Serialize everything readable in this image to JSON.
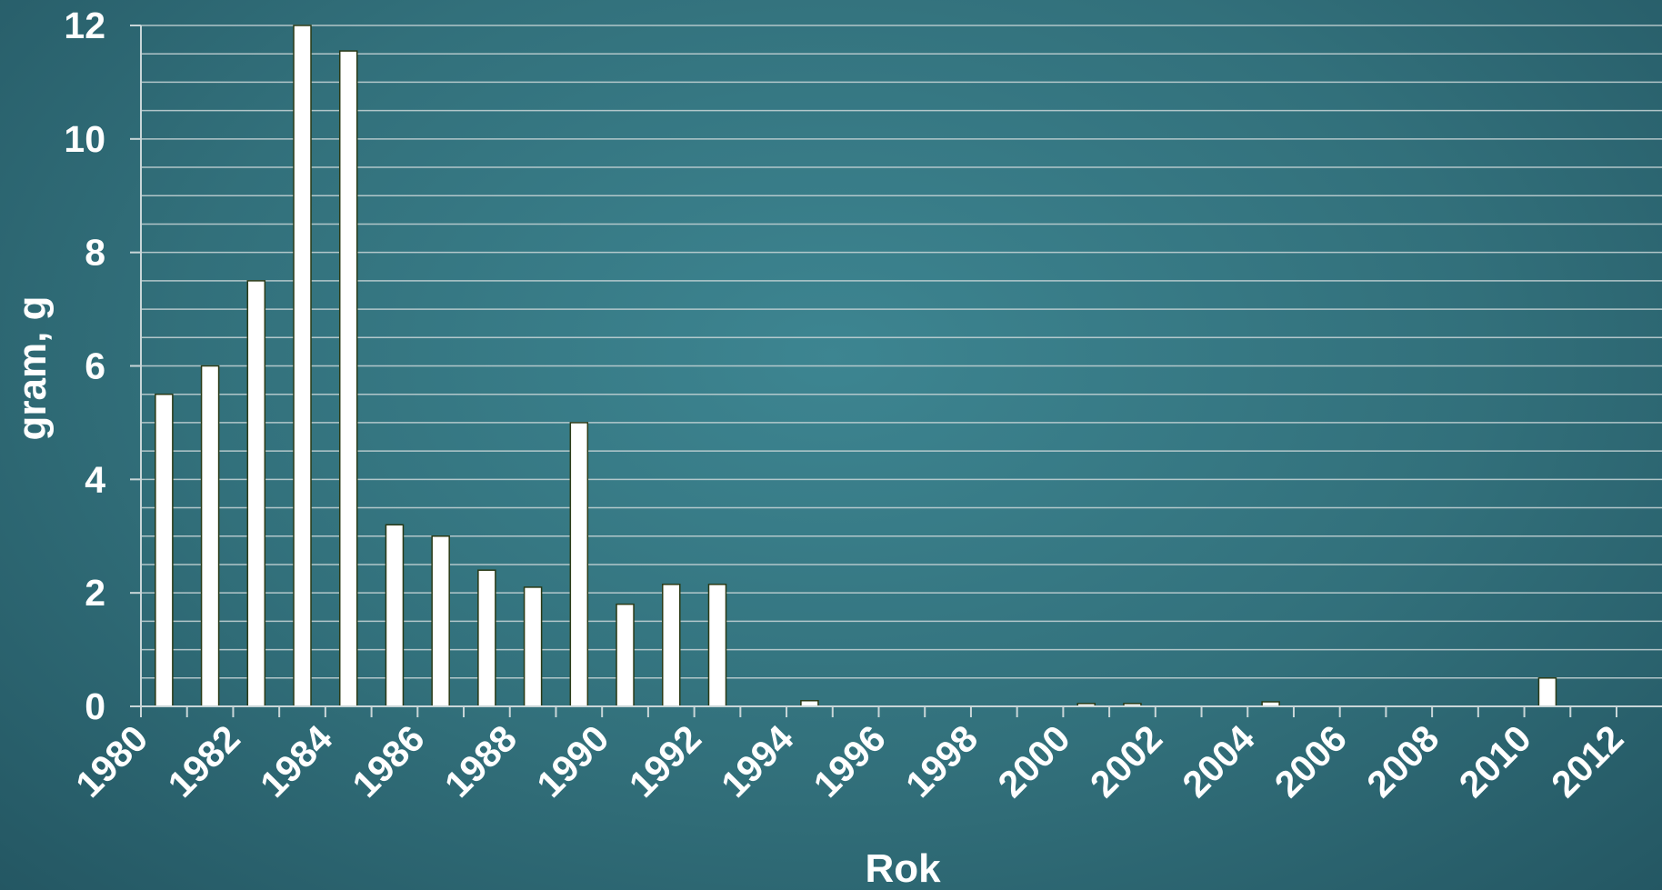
{
  "chart_data": {
    "type": "bar",
    "xlabel": "Rok",
    "ylabel": "gram, g",
    "ylim": [
      0,
      12
    ],
    "xlim": [
      1980,
      2012
    ],
    "yticks": [
      "0",
      "2",
      "4",
      "6",
      "8",
      "10",
      "12"
    ],
    "xticks": [
      "1980",
      "1982",
      "1984",
      "1986",
      "1988",
      "1990",
      "1992",
      "1994",
      "1996",
      "1998",
      "2000",
      "2002",
      "2004",
      "2006",
      "2008",
      "2010",
      "2012"
    ],
    "grid": true,
    "categories": [
      1980,
      1981,
      1982,
      1983,
      1984,
      1985,
      1986,
      1987,
      1988,
      1989,
      1990,
      1991,
      1992,
      1994,
      2000,
      2001,
      2004,
      2010
    ],
    "values": [
      5.5,
      6.0,
      7.5,
      12.0,
      11.55,
      3.2,
      3.0,
      2.4,
      2.1,
      5.0,
      1.8,
      2.15,
      2.15,
      0.1,
      0.05,
      0.05,
      0.08,
      0.5
    ],
    "colors": {
      "bar_fill": "#ffffff",
      "bar_stroke": "#2a3a16",
      "grid": "#c9d6d8",
      "text": "#ffffff"
    }
  }
}
